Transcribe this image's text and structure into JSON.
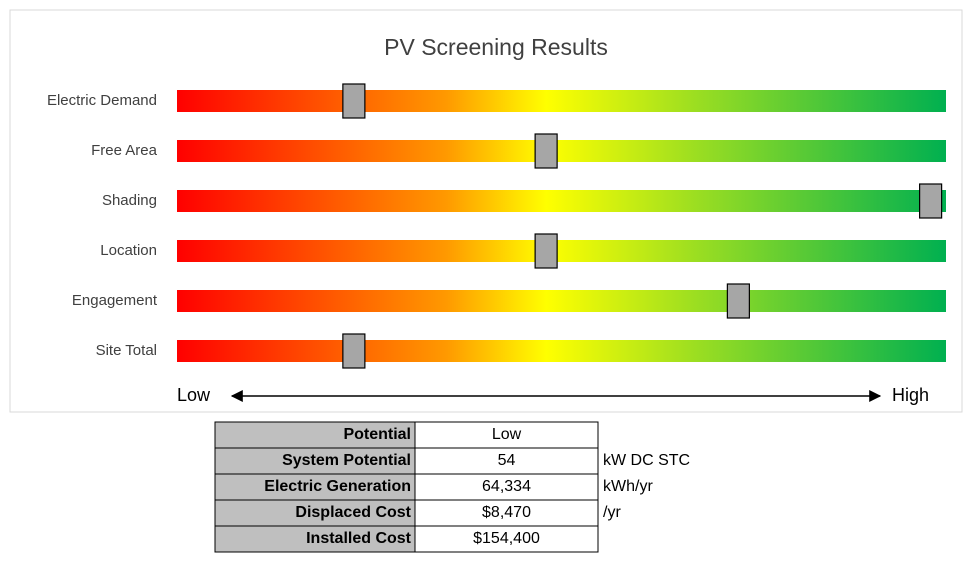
{
  "chart_data": {
    "type": "slider",
    "title": "PV Screening Results",
    "categories": [
      "Electric Demand",
      "Free Area",
      "Shading",
      "Location",
      "Engagement",
      "Site Total"
    ],
    "values": [
      23,
      48,
      98,
      48,
      73,
      23
    ],
    "xlim": [
      0,
      100
    ],
    "low_label": "Low",
    "high_label": "High",
    "marker_color": "#a6a6a6",
    "gradient": [
      "#ff0000",
      "#ff9900",
      "#ffff00",
      "#99dd22",
      "#00b050"
    ]
  },
  "table": {
    "rows": [
      {
        "label": "Potential",
        "value": "Low"
      },
      {
        "label": "System Potential",
        "value": "54",
        "unit": "kW DC STC"
      },
      {
        "label": "Electric Generation",
        "value": "64,334",
        "unit": "kWh/yr"
      },
      {
        "label": "Displaced Cost",
        "value": "$8,470",
        "unit": "/yr"
      },
      {
        "label": "Installed Cost",
        "value": "$154,400"
      }
    ]
  }
}
